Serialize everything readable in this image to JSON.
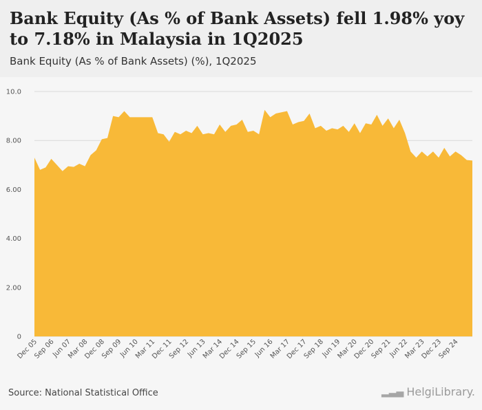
{
  "header": {
    "title": "Bank Equity (As % of Bank Assets) fell 1.98% yoy to 7.18% in Malaysia in 1Q2025",
    "subtitle": "Bank Equity (As % of Bank Assets) (%), 1Q2025"
  },
  "footer": {
    "source": "Source: National Statistical Office",
    "logo_text": "HelgiLibrary."
  },
  "colors": {
    "area_fill": "#f8b938",
    "grid": "#d9d9d9"
  },
  "chart_data": {
    "type": "area",
    "title": "Bank Equity (As % of Bank Assets) (%), 1Q2025",
    "ylim": [
      0,
      10
    ],
    "y_ticks": [
      "0",
      "2.00",
      "4.00",
      "6.00",
      "8.00",
      "10.0"
    ],
    "x_tick_labels": [
      "Dec 05",
      "Sep 06",
      "Jun 07",
      "Mar 08",
      "Dec 08",
      "Sep 09",
      "Jun 10",
      "Mar 11",
      "Dec 11",
      "Sep 12",
      "Jun 13",
      "Mar 14",
      "Dec 14",
      "Sep 15",
      "Jun 16",
      "Mar 17",
      "Dec 17",
      "Sep 18",
      "Jun 19",
      "Mar 20",
      "Dec 20",
      "Sep 21",
      "Jun 22",
      "Mar 23",
      "Dec 23",
      "Sep 24"
    ],
    "series": [
      {
        "name": "Bank Equity (As % of Bank Assets)",
        "values": [
          7.3,
          6.8,
          6.9,
          7.25,
          7.0,
          6.75,
          6.95,
          6.92,
          7.05,
          6.95,
          7.4,
          7.6,
          8.05,
          8.1,
          9.0,
          8.95,
          9.2,
          8.95,
          8.95,
          8.95,
          8.95,
          8.95,
          8.3,
          8.25,
          7.95,
          8.35,
          8.25,
          8.4,
          8.3,
          8.6,
          8.25,
          8.3,
          8.25,
          8.65,
          8.35,
          8.6,
          8.65,
          8.85,
          8.35,
          8.4,
          8.25,
          9.25,
          8.95,
          9.1,
          9.15,
          9.2,
          8.65,
          8.75,
          8.8,
          9.1,
          8.5,
          8.6,
          8.4,
          8.5,
          8.45,
          8.6,
          8.35,
          8.7,
          8.3,
          8.7,
          8.65,
          9.05,
          8.6,
          8.9,
          8.5,
          8.85,
          8.3,
          7.55,
          7.3,
          7.55,
          7.35,
          7.55,
          7.3,
          7.7,
          7.35,
          7.55,
          7.4,
          7.2,
          7.18
        ]
      }
    ]
  }
}
